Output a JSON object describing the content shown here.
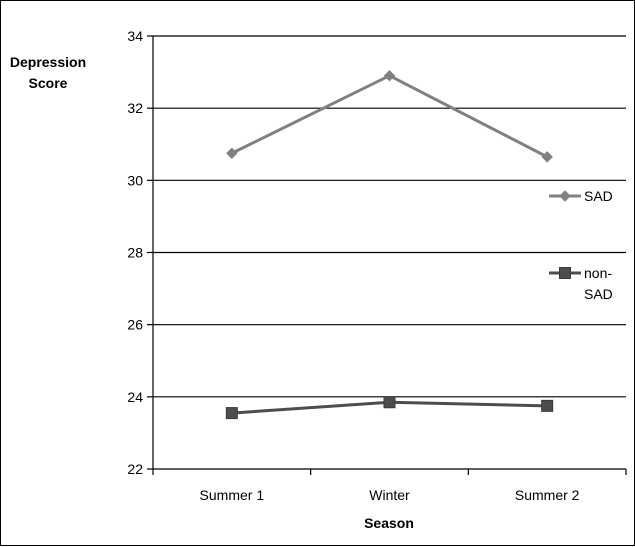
{
  "chart_data": {
    "type": "line",
    "title": "",
    "xlabel": "Season",
    "ylabel": [
      "Depression",
      "Score"
    ],
    "categories": [
      "Summer 1",
      "Winter",
      "Summer 2"
    ],
    "ylim": [
      22,
      34
    ],
    "yticks": [
      22,
      24,
      26,
      28,
      30,
      32,
      34
    ],
    "grid": true,
    "legend_position": "right",
    "series": [
      {
        "name": "SAD",
        "values": [
          30.75,
          32.9,
          30.65
        ],
        "color": "#808080",
        "marker": "diamond"
      },
      {
        "name": "non-SAD",
        "legend_lines": [
          "non-",
          "SAD"
        ],
        "values": [
          23.55,
          23.85,
          23.75
        ],
        "color": "#4d4d4d",
        "marker": "square"
      }
    ]
  }
}
